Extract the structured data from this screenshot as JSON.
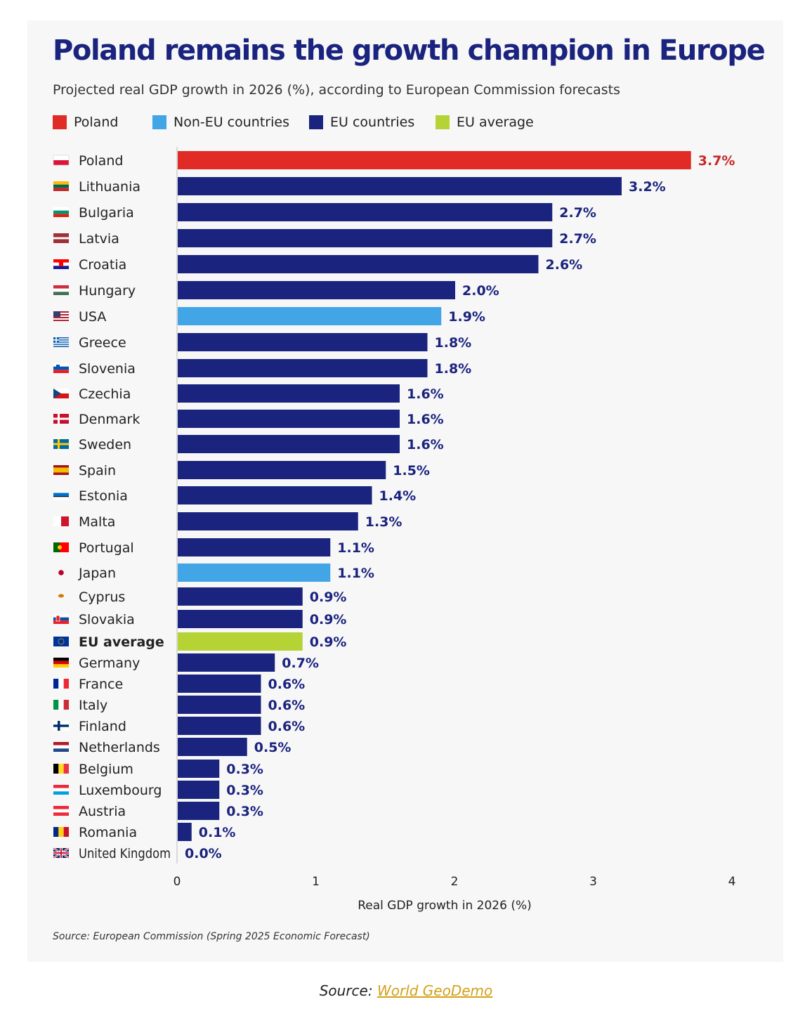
{
  "chart_data": {
    "type": "bar",
    "orientation": "horizontal",
    "title": "Poland remains the growth champion in Europe",
    "subtitle": "Projected real GDP growth in 2026 (%), according to European Commission forecasts",
    "xlabel": "Real GDP growth in 2026 (%)",
    "ylabel": "",
    "xlim": [
      0,
      4
    ],
    "xticks": [
      "0",
      "1",
      "2",
      "3",
      "4"
    ],
    "grid": false,
    "legend_position": "top-left",
    "legend": [
      {
        "label": "Poland",
        "color": "#e12b26"
      },
      {
        "label": "Non-EU countries",
        "color": "#42a5e5"
      },
      {
        "label": "EU countries",
        "color": "#1a237e"
      },
      {
        "label": "EU average",
        "color": "#b5d334"
      }
    ],
    "categories": [
      "Poland",
      "Lithuania",
      "Bulgaria",
      "Latvia",
      "Croatia",
      "Hungary",
      "USA",
      "Greece",
      "Slovenia",
      "Czechia",
      "Denmark",
      "Sweden",
      "Spain",
      "Estonia",
      "Malta",
      "Portugal",
      "Japan",
      "Cyprus",
      "Slovakia",
      "EU average",
      "Germany",
      "France",
      "Italy",
      "Finland",
      "Netherlands",
      "Belgium",
      "Luxembourg",
      "Austria",
      "Romania",
      "United Kingdom"
    ],
    "values": [
      3.7,
      3.2,
      2.7,
      2.7,
      2.6,
      2.0,
      1.9,
      1.8,
      1.8,
      1.6,
      1.6,
      1.6,
      1.5,
      1.4,
      1.3,
      1.1,
      1.1,
      0.9,
      0.9,
      0.9,
      0.7,
      0.6,
      0.6,
      0.6,
      0.5,
      0.3,
      0.3,
      0.3,
      0.1,
      0.0
    ],
    "value_labels": [
      "3.7%",
      "3.2%",
      "2.7%",
      "2.7%",
      "2.6%",
      "2.0%",
      "1.9%",
      "1.8%",
      "1.8%",
      "1.6%",
      "1.6%",
      "1.6%",
      "1.5%",
      "1.4%",
      "1.3%",
      "1.1%",
      "1.1%",
      "0.9%",
      "0.9%",
      "0.9%",
      "0.7%",
      "0.6%",
      "0.6%",
      "0.6%",
      "0.5%",
      "0.3%",
      "0.3%",
      "0.3%",
      "0.1%",
      "0.0%"
    ],
    "groups": [
      "Poland",
      "EU countries",
      "EU countries",
      "EU countries",
      "EU countries",
      "EU countries",
      "Non-EU countries",
      "EU countries",
      "EU countries",
      "EU countries",
      "EU countries",
      "EU countries",
      "EU countries",
      "EU countries",
      "EU countries",
      "EU countries",
      "Non-EU countries",
      "EU countries",
      "EU countries",
      "EU average",
      "EU countries",
      "EU countries",
      "EU countries",
      "EU countries",
      "EU countries",
      "EU countries",
      "EU countries",
      "EU countries",
      "EU countries",
      "Non-EU countries"
    ],
    "flag_icons": [
      "poland-flag-icon",
      "lithuania-flag-icon",
      "bulgaria-flag-icon",
      "latvia-flag-icon",
      "croatia-flag-icon",
      "hungary-flag-icon",
      "usa-flag-icon",
      "greece-flag-icon",
      "slovenia-flag-icon",
      "czechia-flag-icon",
      "denmark-flag-icon",
      "sweden-flag-icon",
      "spain-flag-icon",
      "estonia-flag-icon",
      "malta-flag-icon",
      "portugal-flag-icon",
      "japan-flag-icon",
      "cyprus-flag-icon",
      "slovakia-flag-icon",
      "eu-flag-icon",
      "germany-flag-icon",
      "france-flag-icon",
      "italy-flag-icon",
      "finland-flag-icon",
      "netherlands-flag-icon",
      "belgium-flag-icon",
      "luxembourg-flag-icon",
      "austria-flag-icon",
      "romania-flag-icon",
      "uk-flag-icon"
    ],
    "bold_categories": [
      "EU average"
    ],
    "highlight_label_color": "#c62828",
    "default_label_color": "#1a237e"
  },
  "source_note": "Source: European Commission (Spring 2025 Economic Forecast)",
  "caption": {
    "prefix": "Source: ",
    "link_text": "World GeoDemo"
  }
}
